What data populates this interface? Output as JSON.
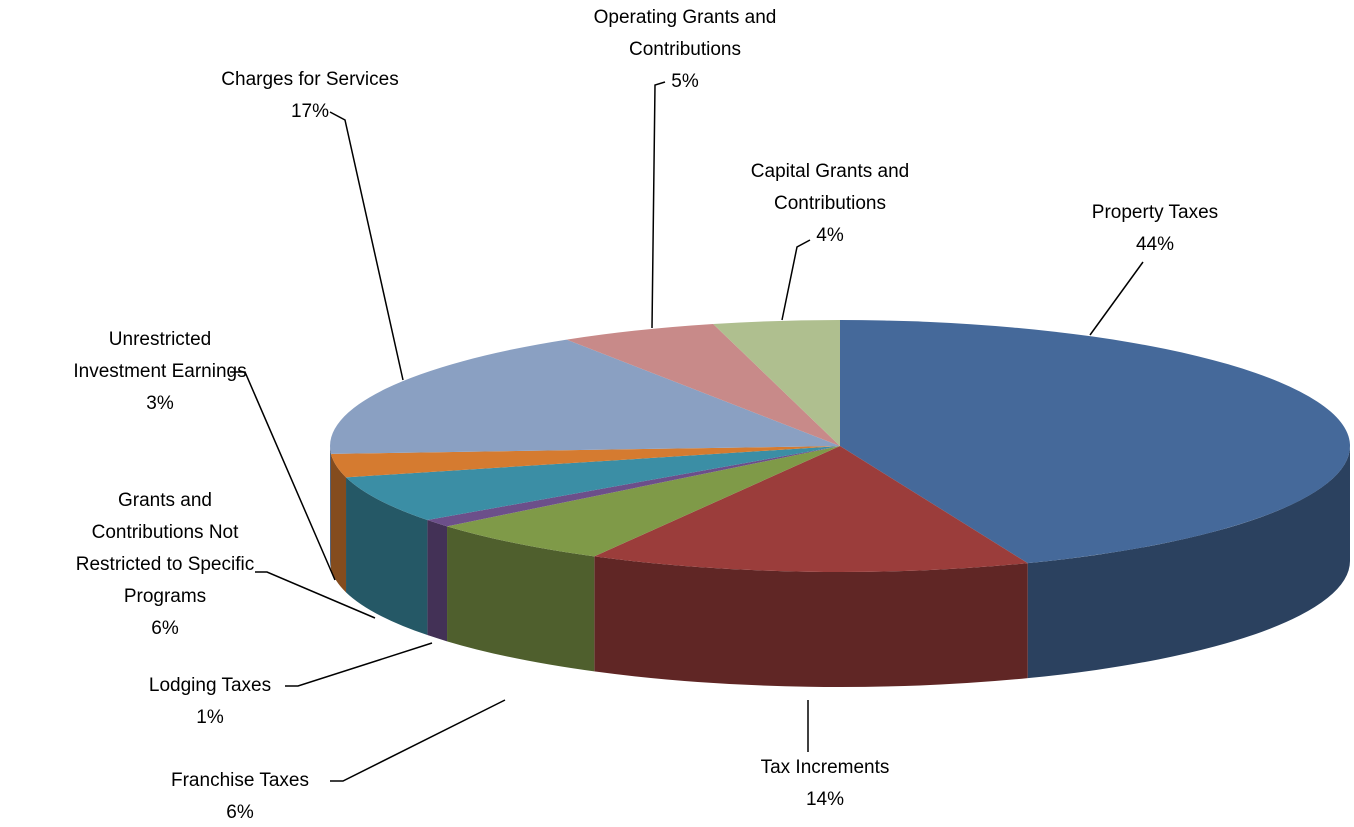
{
  "chart_data": {
    "type": "pie",
    "categories": [
      "Property Taxes",
      "Tax Increments",
      "Franchise Taxes",
      "Lodging Taxes",
      "Grants and Contributions Not Restricted to Specific Programs",
      "Unrestricted Investment Earnings",
      "Charges for Services",
      "Operating Grants and Contributions",
      "Capital Grants and Contributions"
    ],
    "values": [
      44,
      14,
      6,
      1,
      6,
      3,
      17,
      5,
      4
    ],
    "value_labels": [
      "44%",
      "14%",
      "6%",
      "1%",
      "6%",
      "3%",
      "17%",
      "5%",
      "4%"
    ],
    "colors": [
      "#45699a",
      "#9b3d3b",
      "#7f9a48",
      "#6c4f8a",
      "#3b8ea5",
      "#d57b30",
      "#8aa0c2",
      "#c88a89",
      "#afbf8f"
    ]
  }
}
